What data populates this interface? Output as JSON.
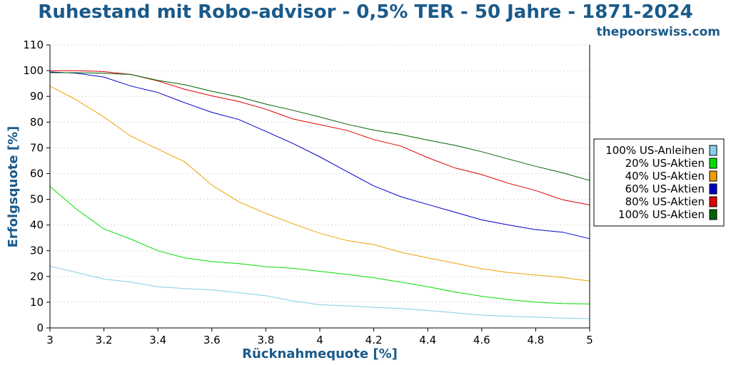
{
  "header": {
    "title": "Ruhestand mit Robo-advisor - 0,5% TER - 50 Jahre - 1871-2024",
    "site": "thepoorswiss.com"
  },
  "chart_data": {
    "type": "line",
    "xlabel": "Rücknahmequote [%]",
    "ylabel": "Erfolgsquote [%]",
    "xlim": [
      3,
      5
    ],
    "ylim": [
      0,
      110
    ],
    "xticks": [
      3,
      3.2,
      3.4,
      3.6,
      3.8,
      4,
      4.2,
      4.4,
      4.6,
      4.8,
      5
    ],
    "xtick_labels": [
      "3",
      "3.2",
      "3.4",
      "3.6",
      "3.8",
      "4",
      "4.2",
      "4.4",
      "4.6",
      "4.8",
      "5"
    ],
    "yticks": [
      0,
      10,
      20,
      30,
      40,
      50,
      60,
      70,
      80,
      90,
      100,
      110
    ],
    "ytick_labels": [
      "0",
      "10",
      "20",
      "30",
      "40",
      "50",
      "60",
      "70",
      "80",
      "90",
      "100",
      "110"
    ],
    "grid": "horizontal dotted",
    "legend_position": "right",
    "x": [
      3,
      3.1,
      3.2,
      3.3,
      3.4,
      3.5,
      3.6,
      3.7,
      3.8,
      3.9,
      4,
      4.1,
      4.2,
      4.3,
      4.4,
      4.5,
      4.6,
      4.7,
      4.8,
      4.9,
      5
    ],
    "series": [
      {
        "name": "100% US-Anleihen",
        "color": "#87ceeb",
        "values": [
          24,
          21.5,
          19,
          17.8,
          16,
          15.3,
          14.8,
          13.7,
          12.5,
          10.5,
          9,
          8.6,
          8,
          7.6,
          6.8,
          5.9,
          5,
          4.5,
          4.2,
          3.8,
          3.6
        ]
      },
      {
        "name": "20% US-Aktien",
        "color": "#00e000",
        "values": [
          55,
          46,
          38.5,
          34.5,
          30,
          27.2,
          25.8,
          25,
          23.8,
          23.2,
          22,
          20.8,
          19.5,
          17.8,
          16,
          14,
          12.3,
          11,
          10,
          9.5,
          9.3
        ]
      },
      {
        "name": "40% US-Aktien",
        "color": "#f0a000",
        "values": [
          94,
          88.5,
          82,
          74.5,
          69.5,
          64.5,
          55.5,
          49,
          44.5,
          40.5,
          36.8,
          34,
          32.4,
          29.4,
          27.2,
          25.2,
          23,
          21.5,
          20.6,
          19.6,
          18.2
        ]
      },
      {
        "name": "60% US-Aktien",
        "color": "#0000cc",
        "values": [
          99.5,
          99,
          97.5,
          94,
          91.5,
          87.5,
          83.8,
          81,
          76.4,
          71.7,
          66.5,
          60.8,
          55.2,
          51,
          48,
          45,
          42,
          40,
          38.2,
          37.2,
          34.7
        ]
      },
      {
        "name": "80% US-Aktien",
        "color": "#e00000",
        "values": [
          100,
          100,
          99.6,
          98.5,
          96,
          92.7,
          90.2,
          88,
          85,
          81.2,
          79,
          76.8,
          73.2,
          70.7,
          66.2,
          62.2,
          59.6,
          56.2,
          53.4,
          49.8,
          47.8
        ]
      },
      {
        "name": "100% US-Aktien",
        "color": "#006400",
        "values": [
          99.2,
          99.2,
          99,
          98.5,
          96.2,
          94.5,
          92,
          89.8,
          87,
          84.6,
          82,
          79.2,
          76.9,
          75.2,
          73,
          71,
          68.5,
          65.6,
          62.8,
          60.3,
          57.3
        ]
      }
    ]
  }
}
